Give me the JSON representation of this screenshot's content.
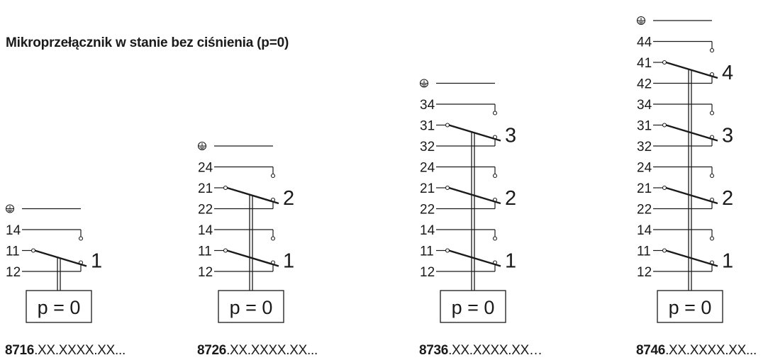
{
  "title": "Mikroprzełącznik w stanie bez ciśnienia (p=0)",
  "models": [
    {
      "number": "8716",
      "suffix": ".XX.XXXX.XX...",
      "box_label": "p = 0",
      "switches": [
        {
          "index": "1",
          "terminals": [
            "14",
            "11",
            "12"
          ]
        }
      ]
    },
    {
      "number": "8726",
      "suffix": ".XX.XXXX.XX...",
      "box_label": "p = 0",
      "switches": [
        {
          "index": "2",
          "terminals": [
            "24",
            "21",
            "22"
          ]
        },
        {
          "index": "1",
          "terminals": [
            "14",
            "11",
            "12"
          ]
        }
      ]
    },
    {
      "number": "8736",
      "suffix": ".XX.XXXX.XX…",
      "box_label": "p = 0",
      "switches": [
        {
          "index": "3",
          "terminals": [
            "34",
            "31",
            "32"
          ]
        },
        {
          "index": "2",
          "terminals": [
            "24",
            "21",
            "22"
          ]
        },
        {
          "index": "1",
          "terminals": [
            "14",
            "11",
            "12"
          ]
        }
      ]
    },
    {
      "number": "8746",
      "suffix": ".XX.XXXX.XX...",
      "box_label": "p = 0",
      "switches": [
        {
          "index": "4",
          "terminals": [
            "44",
            "41",
            "42"
          ]
        },
        {
          "index": "3",
          "terminals": [
            "34",
            "31",
            "32"
          ]
        },
        {
          "index": "2",
          "terminals": [
            "24",
            "21",
            "22"
          ]
        },
        {
          "index": "1",
          "terminals": [
            "14",
            "11",
            "12"
          ]
        }
      ]
    }
  ],
  "ground_icon": "earth-ground-icon",
  "colors": {
    "line": "#1a1a1a",
    "background": "#ffffff"
  }
}
